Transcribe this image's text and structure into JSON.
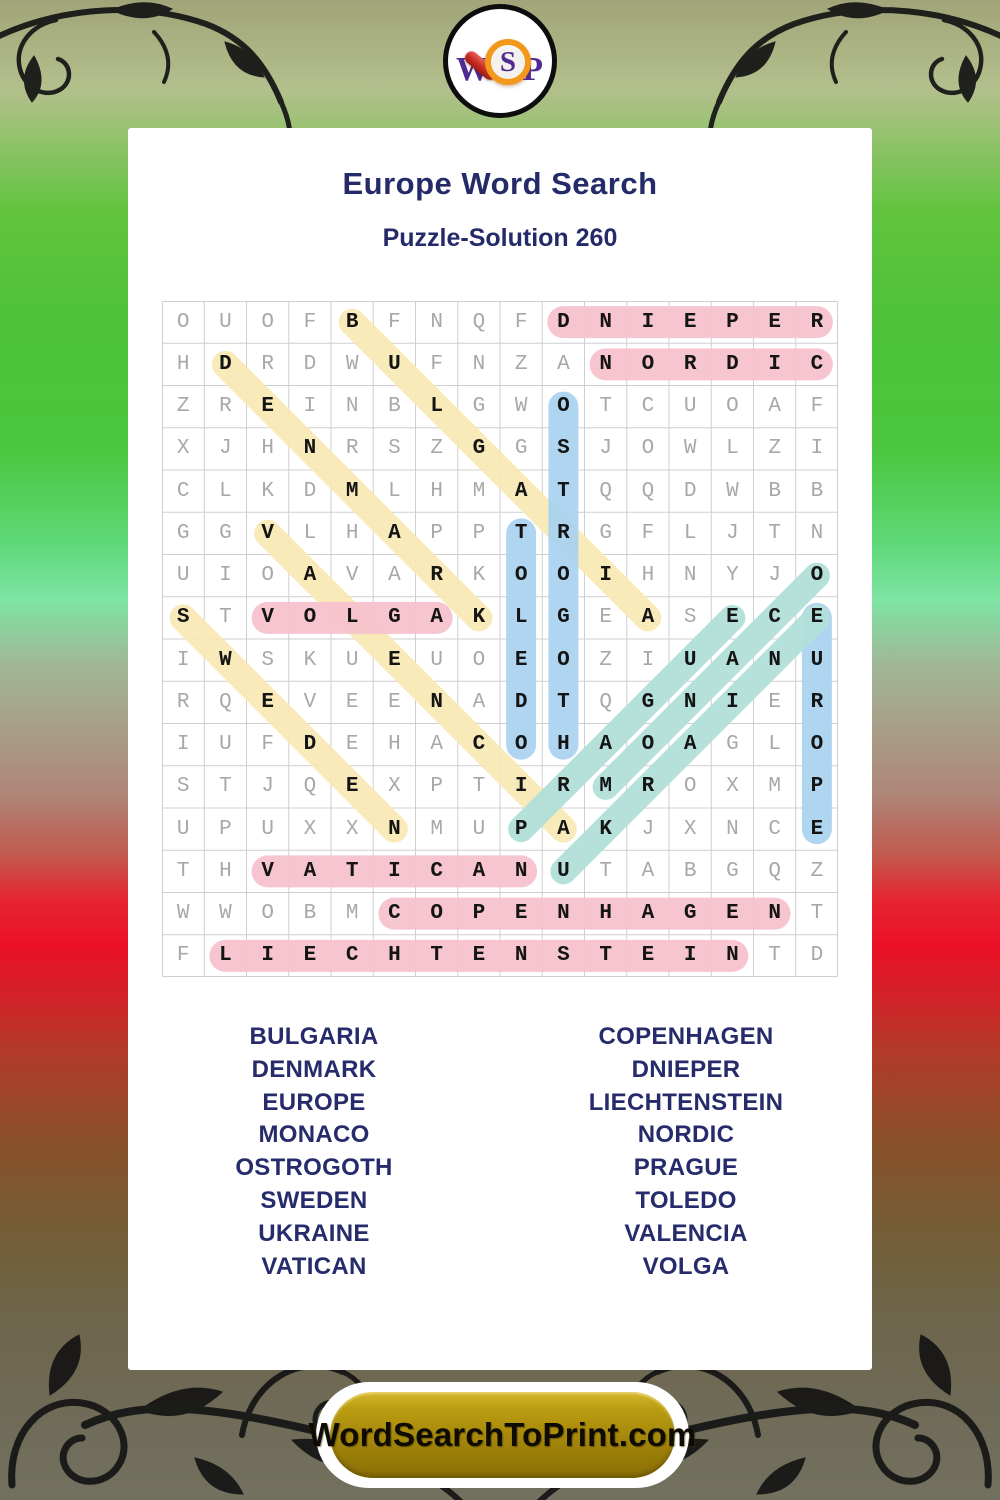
{
  "header": {
    "title": "Europe Word Search",
    "subtitle": "Puzzle-Solution 260"
  },
  "logo": {
    "letters": [
      "W",
      "S",
      "P"
    ],
    "purple": "#4f2b94",
    "magnifier_orange": "#f2991d",
    "handle_red": "#c4271e"
  },
  "grid": {
    "size": 16,
    "rows": [
      "OUOFBFNQFDNIEPER",
      "HDRDWUFNZANORDIC",
      "ZREINBLGWOTCUOAF",
      "XJHNRSZGGSJOWLZI",
      "CLKDMLHMATQQDWBB",
      "GGVLHAPPTRGFLJTN",
      "UIOAVARKOOIHNYJO",
      "STVOLGAKLGEASECE",
      "IWSKUEUOEOZIUANU",
      "RQEVEENADTQGNIER",
      "IUFDEHACOHAOAGLO",
      "STJQEXPTIRMROXMP",
      "UPUXXNMUPAKJXNCE",
      "THVATICANUTABGQZ",
      "WWOBMCOPENHAGENT",
      "FLIECHTENSTEINTD"
    ],
    "placements": [
      {
        "word": "DNIEPER",
        "row": 1,
        "col": 10,
        "dr": 0,
        "dc": 1,
        "color": "pink"
      },
      {
        "word": "NORDIC",
        "row": 2,
        "col": 11,
        "dr": 0,
        "dc": 1,
        "color": "pink"
      },
      {
        "word": "VOLGA",
        "row": 8,
        "col": 3,
        "dr": 0,
        "dc": 1,
        "color": "pink"
      },
      {
        "word": "VATICAN",
        "row": 14,
        "col": 3,
        "dr": 0,
        "dc": 1,
        "color": "pink"
      },
      {
        "word": "COPENHAGEN",
        "row": 15,
        "col": 6,
        "dr": 0,
        "dc": 1,
        "color": "pink"
      },
      {
        "word": "LIECHTENSTEIN",
        "row": 16,
        "col": 2,
        "dr": 0,
        "dc": 1,
        "color": "pink"
      },
      {
        "word": "BULGARIA",
        "row": 1,
        "col": 5,
        "dr": 1,
        "dc": 1,
        "color": "yellow"
      },
      {
        "word": "DENMARK",
        "row": 2,
        "col": 2,
        "dr": 1,
        "dc": 1,
        "color": "yellow"
      },
      {
        "word": "VALENCIA",
        "row": 6,
        "col": 3,
        "dr": 1,
        "dc": 1,
        "color": "yellow"
      },
      {
        "word": "SWEDEN",
        "row": 8,
        "col": 1,
        "dr": 1,
        "dc": 1,
        "color": "yellow"
      },
      {
        "word": "OSTROGOTH",
        "row": 3,
        "col": 10,
        "dr": 1,
        "dc": 0,
        "color": "blue"
      },
      {
        "word": "TOLEDO",
        "row": 6,
        "col": 9,
        "dr": 1,
        "dc": 0,
        "color": "blue"
      },
      {
        "word": "EUROPE",
        "row": 8,
        "col": 16,
        "dr": 1,
        "dc": 0,
        "color": "blue"
      },
      {
        "word": "MONACO",
        "row": 12,
        "col": 11,
        "dr": -1,
        "dc": 1,
        "color": "teal"
      },
      {
        "word": "UKRAINE",
        "row": 14,
        "col": 10,
        "dr": -1,
        "dc": 1,
        "color": "teal"
      },
      {
        "word": "PRAGUE",
        "row": 13,
        "col": 9,
        "dr": -1,
        "dc": 1,
        "color": "teal"
      }
    ],
    "palette": {
      "pink": "#f7c2ce",
      "yellow": "#f9e9b6",
      "blue": "#abd3f0",
      "teal": "#b2e0d9"
    },
    "grid_line_color": "#cfcfcf",
    "letter_color": "#a8a8a8",
    "solution_letter_color": "#141414"
  },
  "word_list": {
    "left": [
      "BULGARIA",
      "DENMARK",
      "EUROPE",
      "MONACO",
      "OSTROGOTH",
      "SWEDEN",
      "UKRAINE",
      "VATICAN"
    ],
    "right": [
      "COPENHAGEN",
      "DNIEPER",
      "LIECHTENSTEIN",
      "NORDIC",
      "PRAGUE",
      "TOLEDO",
      "VALENCIA",
      "VOLGA"
    ]
  },
  "footer": {
    "site_label": "WordSearchToPrint.com",
    "button_gold": "#a3860b"
  },
  "colors": {
    "navy_text": "#262c6b",
    "card_background": "#ffffff"
  }
}
